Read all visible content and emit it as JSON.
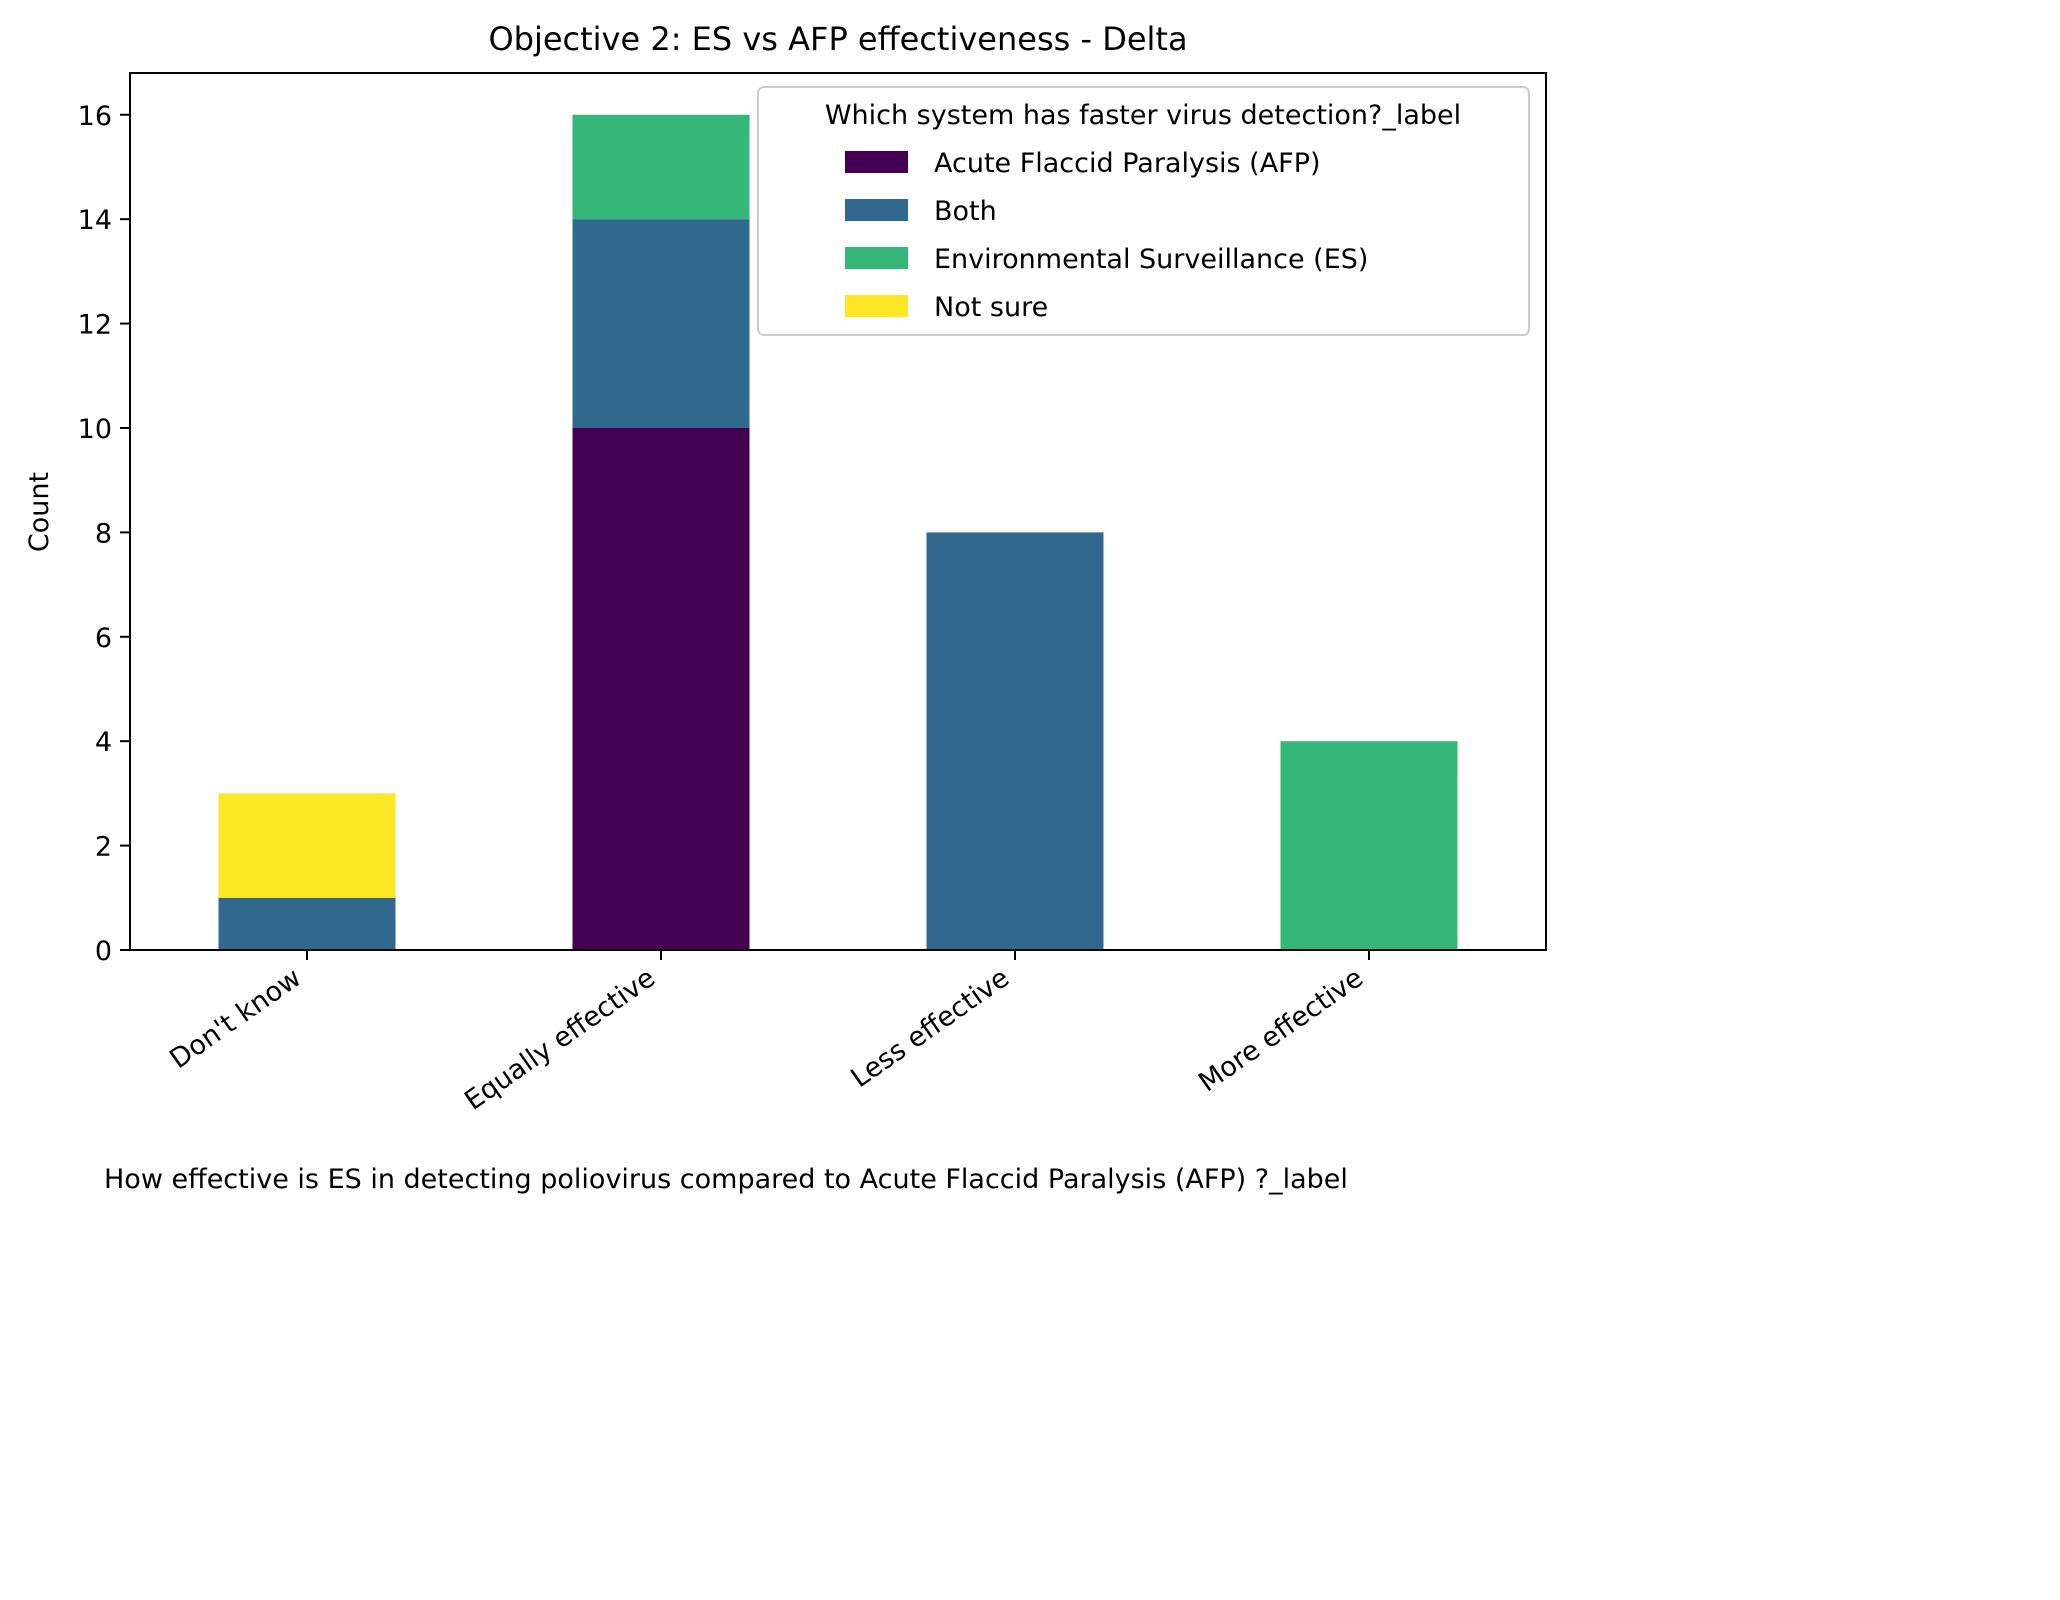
{
  "chart_data": {
    "type": "bar",
    "stacked": true,
    "title": "Objective 2: ES vs AFP effectiveness - Delta",
    "xlabel": "How effective is ES in detecting poliovirus compared to  Acute Flaccid Paralysis (AFP) ?_label",
    "ylabel": "Count",
    "ylim": [
      0,
      16.8
    ],
    "yticks": [
      0,
      2,
      4,
      6,
      8,
      10,
      12,
      14,
      16
    ],
    "categories": [
      "Don't know",
      "Equally effective",
      "Less effective",
      "More effective"
    ],
    "legend": {
      "title": "Which system has faster virus detection?_label",
      "placement": "top-right"
    },
    "series": [
      {
        "name": "Acute Flaccid Paralysis (AFP)",
        "color": "#440154",
        "values": [
          0,
          10,
          0,
          0
        ]
      },
      {
        "name": "Both",
        "color": "#31688e",
        "values": [
          1,
          4,
          8,
          0
        ]
      },
      {
        "name": "Environmental Surveillance (ES)",
        "color": "#35b779",
        "values": [
          0,
          2,
          0,
          4
        ]
      },
      {
        "name": "Not sure",
        "color": "#fde725",
        "values": [
          2,
          0,
          0,
          0
        ]
      }
    ],
    "grid": false
  }
}
